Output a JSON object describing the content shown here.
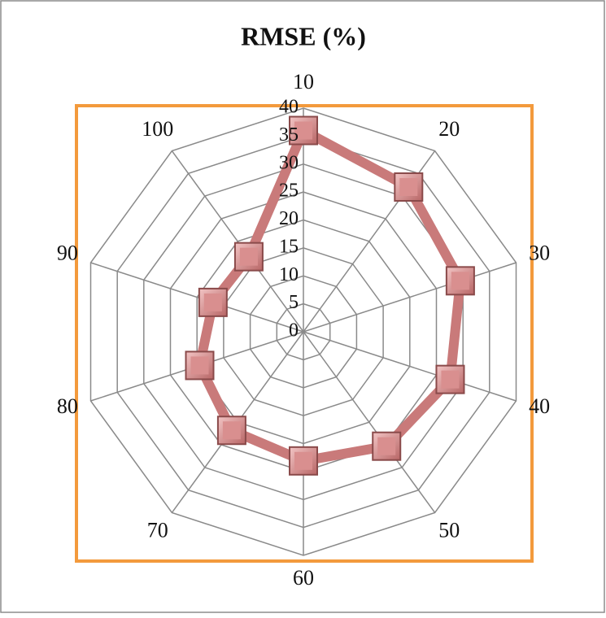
{
  "chart_data": {
    "type": "radar",
    "title": "RMSE (%)",
    "categories": [
      "10",
      "20",
      "30",
      "40",
      "50",
      "60",
      "70",
      "80",
      "90",
      "100"
    ],
    "values": [
      36,
      32,
      29.5,
      27.6,
      25.3,
      23.1,
      21.8,
      19.5,
      17,
      16.6
    ],
    "color": "#c97a7a",
    "marker_color": "#d98f8f",
    "ylim": [
      0,
      40
    ],
    "yticks": [
      0,
      5,
      10,
      15,
      20,
      25,
      30,
      35,
      40
    ],
    "grid": true
  }
}
